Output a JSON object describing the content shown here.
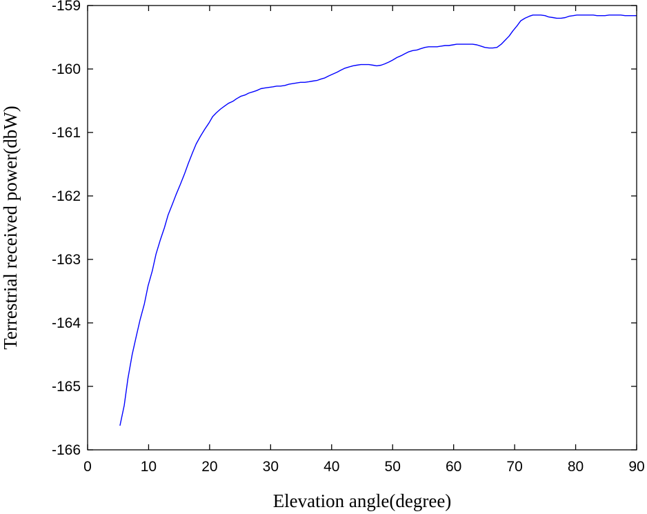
{
  "chart_data": {
    "type": "line",
    "title": "",
    "xlabel": "Elevation angle(degree)",
    "ylabel": "Terrestrial received power(dbW)",
    "xlim": [
      0,
      90
    ],
    "ylim": [
      -166,
      -159
    ],
    "xticks": [
      0,
      10,
      20,
      30,
      40,
      50,
      60,
      70,
      80,
      90
    ],
    "yticks": [
      -166,
      -165,
      -164,
      -163,
      -162,
      -161,
      -160,
      -159
    ],
    "grid": false,
    "legend": "none",
    "series": [
      {
        "color": "#0000ff",
        "x": [
          5.3,
          6.0,
          6.6,
          7.3,
          8.0,
          8.6,
          9.3,
          9.9,
          10.6,
          11.2,
          11.9,
          12.6,
          13.2,
          13.9,
          14.5,
          15.2,
          15.9,
          16.5,
          17.2,
          17.8,
          18.5,
          19.2,
          19.9,
          20.5,
          21.1,
          21.8,
          22.5,
          23.1,
          23.8,
          24.4,
          25.1,
          25.8,
          26.4,
          27.1,
          27.7,
          28.4,
          29.0,
          29.7,
          30.4,
          31.0,
          31.6,
          32.3,
          33.0,
          33.6,
          34.3,
          34.9,
          35.6,
          36.3,
          36.9,
          37.6,
          38.2,
          38.9,
          39.5,
          40.2,
          40.9,
          41.5,
          42.1,
          42.8,
          43.5,
          44.1,
          44.8,
          45.4,
          46.1,
          46.8,
          47.4,
          48.1,
          48.7,
          49.4,
          50.0,
          50.7,
          51.4,
          52.0,
          52.6,
          53.3,
          54.0,
          54.6,
          55.3,
          55.9,
          56.6,
          57.3,
          57.9,
          58.6,
          59.2,
          59.9,
          60.5,
          61.2,
          61.9,
          62.5,
          63.1,
          63.8,
          64.5,
          65.1,
          65.8,
          66.4,
          67.1,
          67.8,
          68.4,
          69.1,
          69.7,
          70.4,
          71.0,
          71.7,
          72.4,
          73.0,
          73.6,
          74.3,
          75.0,
          75.6,
          76.3,
          76.9,
          77.6,
          78.3,
          78.9,
          79.6,
          80.2,
          80.9,
          81.5,
          82.2,
          82.9,
          83.5,
          84.1,
          84.8,
          85.5,
          86.1,
          86.8,
          87.4,
          88.1,
          88.8,
          89.4,
          90.0
        ],
        "y": [
          -165.62,
          -165.3,
          -164.88,
          -164.5,
          -164.2,
          -163.95,
          -163.7,
          -163.42,
          -163.18,
          -162.92,
          -162.7,
          -162.5,
          -162.3,
          -162.13,
          -161.98,
          -161.82,
          -161.65,
          -161.49,
          -161.32,
          -161.18,
          -161.06,
          -160.95,
          -160.85,
          -160.75,
          -160.69,
          -160.63,
          -160.58,
          -160.54,
          -160.51,
          -160.47,
          -160.43,
          -160.41,
          -160.38,
          -160.36,
          -160.34,
          -160.31,
          -160.3,
          -160.29,
          -160.28,
          -160.27,
          -160.27,
          -160.26,
          -160.24,
          -160.23,
          -160.22,
          -160.21,
          -160.21,
          -160.2,
          -160.19,
          -160.18,
          -160.16,
          -160.14,
          -160.11,
          -160.08,
          -160.05,
          -160.02,
          -159.99,
          -159.97,
          -159.95,
          -159.94,
          -159.93,
          -159.93,
          -159.93,
          -159.94,
          -159.95,
          -159.94,
          -159.92,
          -159.89,
          -159.86,
          -159.82,
          -159.79,
          -159.76,
          -159.73,
          -159.71,
          -159.7,
          -159.68,
          -159.66,
          -159.65,
          -159.65,
          -159.65,
          -159.64,
          -159.63,
          -159.63,
          -159.62,
          -159.61,
          -159.61,
          -159.61,
          -159.61,
          -159.61,
          -159.62,
          -159.64,
          -159.66,
          -159.67,
          -159.67,
          -159.66,
          -159.61,
          -159.55,
          -159.48,
          -159.4,
          -159.32,
          -159.24,
          -159.2,
          -159.17,
          -159.15,
          -159.15,
          -159.15,
          -159.16,
          -159.18,
          -159.19,
          -159.2,
          -159.2,
          -159.19,
          -159.17,
          -159.16,
          -159.15,
          -159.15,
          -159.15,
          -159.15,
          -159.15,
          -159.16,
          -159.16,
          -159.16,
          -159.15,
          -159.15,
          -159.15,
          -159.15,
          -159.16,
          -159.16,
          -159.16,
          -159.16
        ]
      }
    ]
  }
}
